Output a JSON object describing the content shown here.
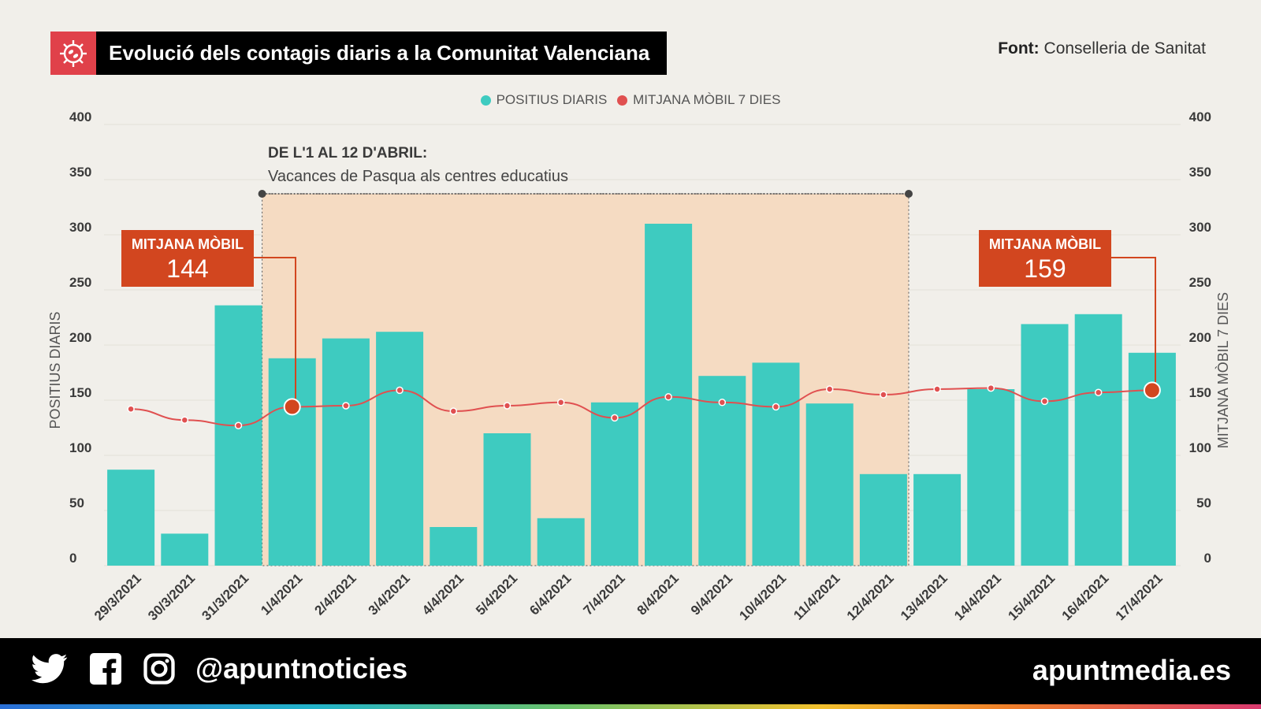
{
  "header": {
    "title": "Evolució dels contagis diaris a la Comunitat Valenciana",
    "source_label": "Font:",
    "source_value": "Conselleria de Sanitat"
  },
  "legend": {
    "bars": "POSITIUS DIARIS",
    "line": "MITJANA MÒBIL 7 DIES"
  },
  "annotation": {
    "title": "DE L'1 AL 12 D'ABRIL:",
    "subtitle": "Vacances de Pasqua als centres educatius"
  },
  "callouts": [
    {
      "label": "MITJANA MÒBIL",
      "value": "144"
    },
    {
      "label": "MITJANA MÒBIL",
      "value": "159"
    }
  ],
  "footer": {
    "handle": "@apuntnoticies",
    "site": "apuntmedia.es",
    "icons": [
      "twitter-icon",
      "facebook-icon",
      "instagram-icon"
    ]
  },
  "colors": {
    "bar": "#3ecbc0",
    "line": "#e05050",
    "callout": "#d2461f",
    "highlight": "#f5dbc2",
    "title_icon": "#e0414a"
  },
  "chart_data": {
    "type": "bar",
    "categories": [
      "29/3/2021",
      "30/3/2021",
      "31/3/2021",
      "1/4/2021",
      "2/4/2021",
      "3/4/2021",
      "4/4/2021",
      "5/4/2021",
      "6/4/2021",
      "7/4/2021",
      "8/4/2021",
      "9/4/2021",
      "10/4/2021",
      "11/4/2021",
      "12/4/2021",
      "13/4/2021",
      "14/4/2021",
      "15/4/2021",
      "16/4/2021",
      "17/4/2021"
    ],
    "series": [
      {
        "name": "POSITIUS DIARIS",
        "type": "bar",
        "values": [
          87,
          29,
          236,
          188,
          206,
          212,
          35,
          120,
          43,
          148,
          310,
          172,
          184,
          147,
          83,
          83,
          160,
          219,
          228,
          193
        ]
      },
      {
        "name": "MITJANA MÒBIL 7 DIES",
        "type": "line",
        "values": [
          142,
          132,
          127,
          144,
          145,
          159,
          140,
          145,
          148,
          134,
          153,
          148,
          144,
          160,
          155,
          160,
          161,
          149,
          157,
          159
        ]
      }
    ],
    "ylabel": "POSITIUS DIARIS",
    "y2label": "MITJANA MÒBIL 7 DIES",
    "ylim": [
      0,
      400
    ],
    "y2lim": [
      0,
      400
    ],
    "yticks": [
      0,
      50,
      100,
      150,
      200,
      250,
      300,
      350,
      400
    ],
    "highlight_range": [
      "1/4/2021",
      "12/4/2021"
    ],
    "grid": true,
    "legend_position": "top-center"
  }
}
